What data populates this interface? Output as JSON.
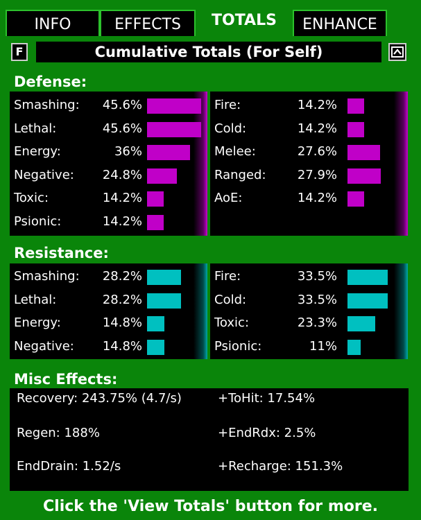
{
  "tabs": [
    {
      "label": "INFO",
      "active": false
    },
    {
      "label": "EFFECTS",
      "active": false
    },
    {
      "label": "TOTALS",
      "active": true
    },
    {
      "label": "ENHANCE",
      "active": false
    }
  ],
  "header": {
    "filter_label": "F",
    "title": "Cumulative Totals (For Self)",
    "expand_icon": "chevron-up-icon"
  },
  "defense": {
    "title": "Defense:",
    "bar_color": "#c000c8",
    "left": [
      {
        "name": "Smashing:",
        "value": "45.6%",
        "pct": 45.6
      },
      {
        "name": "Lethal:",
        "value": "45.6%",
        "pct": 45.6
      },
      {
        "name": "Energy:",
        "value": "36%",
        "pct": 36
      },
      {
        "name": "Negative:",
        "value": "24.8%",
        "pct": 24.8
      },
      {
        "name": "Toxic:",
        "value": "14.2%",
        "pct": 14.2
      },
      {
        "name": "Psionic:",
        "value": "14.2%",
        "pct": 14.2
      }
    ],
    "right": [
      {
        "name": "Fire:",
        "value": "14.2%",
        "pct": 14.2
      },
      {
        "name": "Cold:",
        "value": "14.2%",
        "pct": 14.2
      },
      {
        "name": "Melee:",
        "value": "27.6%",
        "pct": 27.6
      },
      {
        "name": "Ranged:",
        "value": "27.9%",
        "pct": 27.9
      },
      {
        "name": "AoE:",
        "value": "14.2%",
        "pct": 14.2
      }
    ]
  },
  "resistance": {
    "title": "Resistance:",
    "bar_color": "#00c0c0",
    "left": [
      {
        "name": "Smashing:",
        "value": "28.2%",
        "pct": 28.2
      },
      {
        "name": "Lethal:",
        "value": "28.2%",
        "pct": 28.2
      },
      {
        "name": "Energy:",
        "value": "14.8%",
        "pct": 14.8
      },
      {
        "name": "Negative:",
        "value": "14.8%",
        "pct": 14.8
      }
    ],
    "right": [
      {
        "name": "Fire:",
        "value": "33.5%",
        "pct": 33.5
      },
      {
        "name": "Cold:",
        "value": "33.5%",
        "pct": 33.5
      },
      {
        "name": "Toxic:",
        "value": "23.3%",
        "pct": 23.3
      },
      {
        "name": "Psionic:",
        "value": "11%",
        "pct": 11
      }
    ]
  },
  "misc": {
    "title": "Misc Effects:",
    "left": [
      "Recovery: 243.75% (4.7/s)",
      "Regen: 188%",
      "EndDrain: 1.52/s"
    ],
    "right": [
      "+ToHit: 17.54%",
      "+EndRdx: 2.5%",
      "+Recharge: 151.3%"
    ]
  },
  "footer": "Click the 'View Totals' button for more."
}
